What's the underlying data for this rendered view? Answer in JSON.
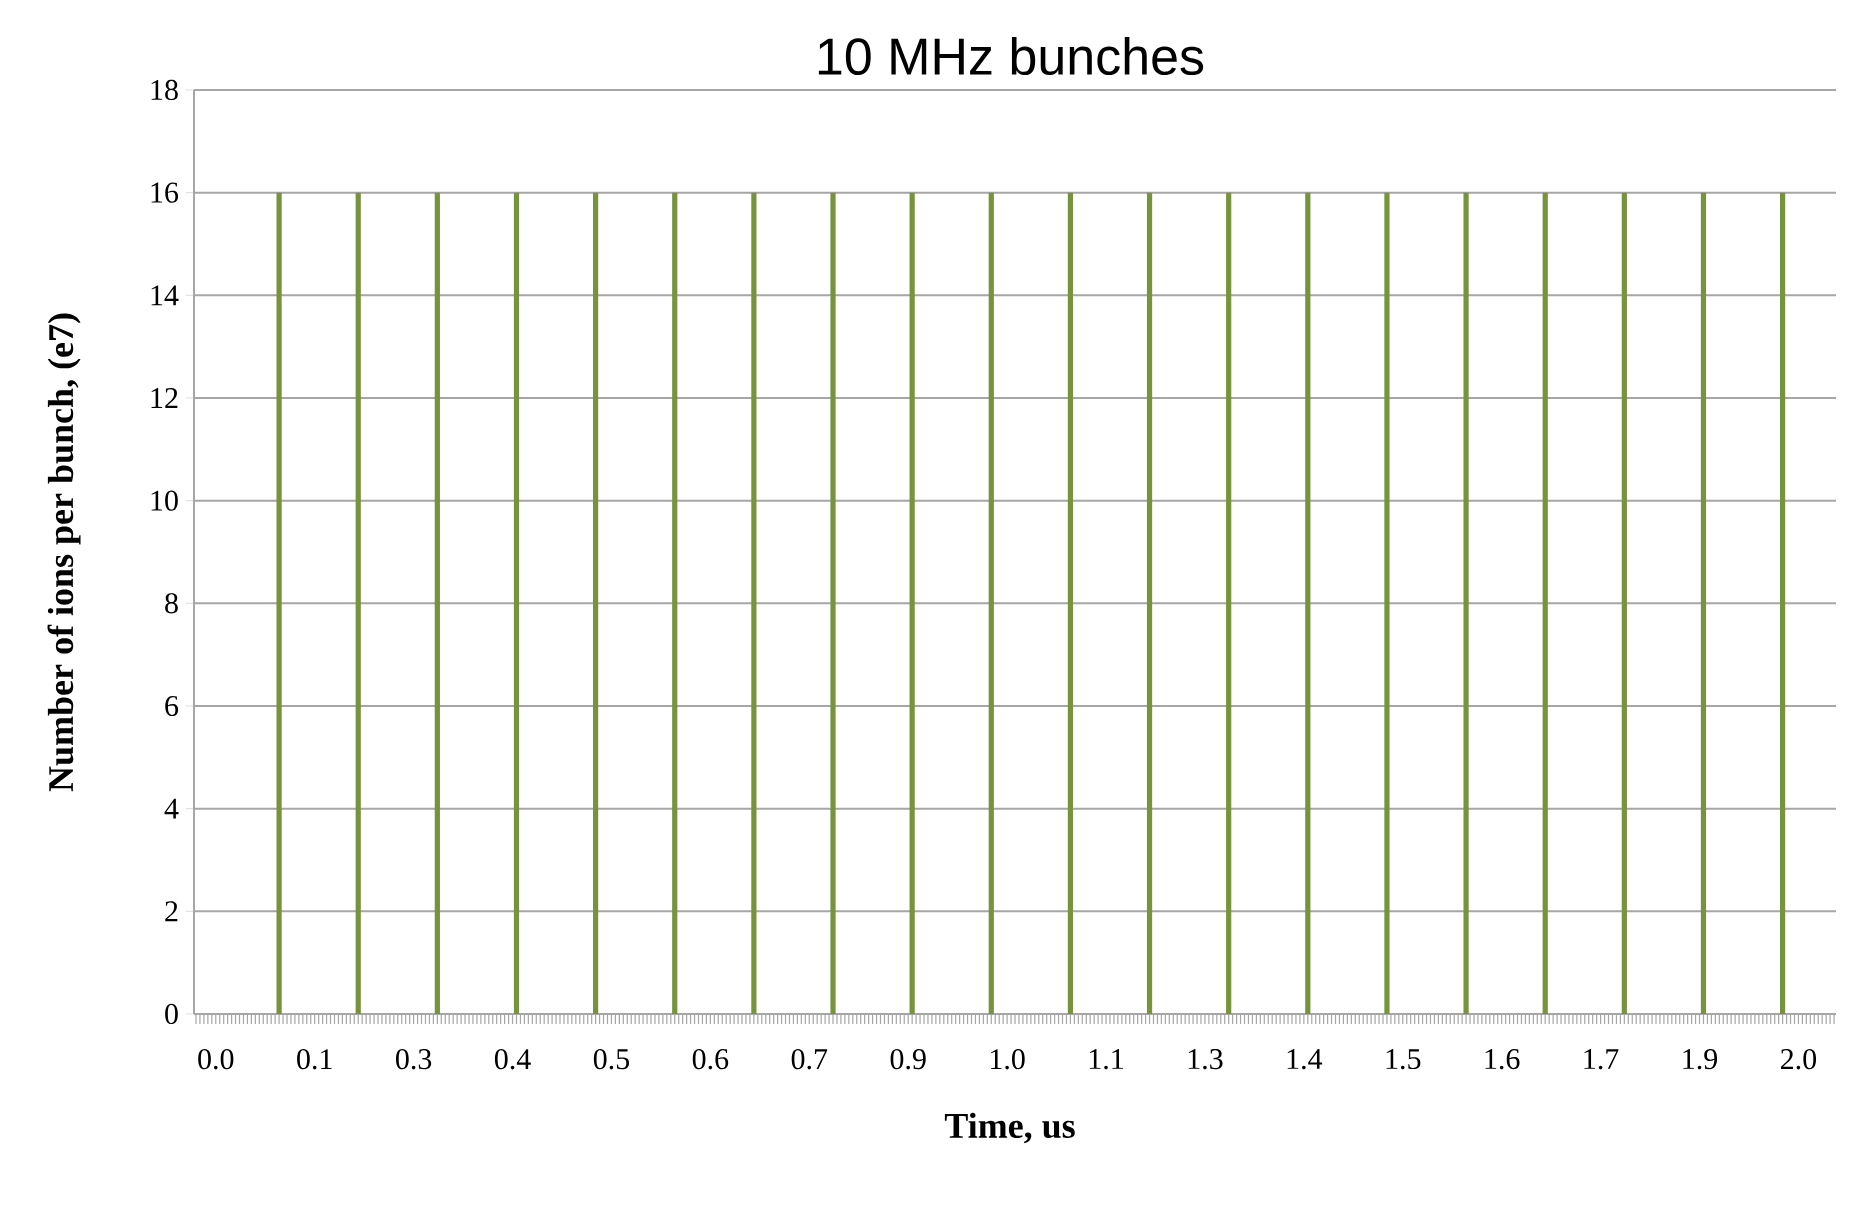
{
  "chart_data": {
    "type": "bar",
    "title": "10 MHz bunches",
    "xlabel": "Time, us",
    "ylabel": "Number of ions per bunch, (e7)",
    "categories": [
      null,
      null,
      null,
      null,
      null,
      "0.0",
      null,
      null,
      null,
      null,
      null,
      null,
      null,
      null,
      null,
      null,
      null,
      null,
      null,
      null,
      null,
      null,
      null,
      null,
      null,
      null,
      null,
      null,
      null,
      null,
      "0.1",
      null,
      null,
      null,
      null,
      null,
      null,
      null,
      null,
      null,
      null,
      null,
      null,
      null,
      null,
      null,
      null,
      null,
      null,
      null,
      null,
      null,
      null,
      null,
      null,
      "0.3",
      null,
      null,
      null,
      null,
      null,
      null,
      null,
      null,
      null,
      null,
      null,
      null,
      null,
      null,
      null,
      null,
      null,
      null,
      null,
      null,
      null,
      null,
      null,
      null,
      "0.4",
      null,
      null,
      null,
      null,
      null,
      null,
      null,
      null,
      null,
      null,
      null,
      null,
      null,
      null,
      null,
      null,
      null,
      null,
      null,
      null,
      null,
      null,
      null,
      null,
      "0.5",
      null,
      null,
      null,
      null,
      null,
      null,
      null,
      null,
      null,
      null,
      null,
      null,
      null,
      null,
      null,
      null,
      null,
      null,
      null,
      null,
      null,
      null,
      null,
      null,
      "0.6",
      null,
      null,
      null,
      null,
      null,
      null,
      null,
      null,
      null,
      null,
      null,
      null,
      null,
      null,
      null,
      null,
      null,
      null,
      null,
      null,
      null,
      null,
      null,
      null,
      "0.7",
      null,
      null,
      null,
      null,
      null,
      null,
      null,
      null,
      null,
      null,
      null,
      null,
      null,
      null,
      null,
      null,
      null,
      null,
      null,
      null,
      null,
      null,
      null,
      null,
      "0.9",
      null,
      null,
      null,
      null,
      null,
      null,
      null,
      null,
      null,
      null,
      null,
      null,
      null,
      null,
      null,
      null,
      null,
      null,
      null,
      null,
      null,
      null,
      null,
      null,
      "1.0",
      null,
      null,
      null,
      null,
      null,
      null,
      null,
      null,
      null,
      null,
      null,
      null,
      null,
      null,
      null,
      null,
      null,
      null,
      null,
      null,
      null,
      null,
      null,
      null,
      "1.1",
      null,
      null,
      null,
      null,
      null,
      null,
      null,
      null,
      null,
      null,
      null,
      null,
      null,
      null,
      null,
      null,
      null,
      null,
      null,
      null,
      null,
      null,
      null,
      null,
      "1.3",
      null,
      null,
      null,
      null,
      null,
      null,
      null,
      null,
      null,
      null,
      null,
      null,
      null,
      null,
      null,
      null,
      null,
      null,
      null,
      null,
      null,
      null,
      null,
      null,
      "1.4",
      null,
      null,
      null,
      null,
      null,
      null,
      null,
      null,
      null,
      null,
      null,
      null,
      null,
      null,
      null,
      null,
      null,
      null,
      null,
      null,
      null,
      null,
      null,
      null,
      "1.5",
      null,
      null,
      null,
      null,
      null,
      null,
      null,
      null,
      null,
      null,
      null,
      null,
      null,
      null,
      null,
      null,
      null,
      null,
      null,
      null,
      null,
      null,
      null,
      null,
      "1.6",
      null,
      null,
      null,
      null,
      null,
      null,
      null,
      null,
      null,
      null,
      null,
      null,
      null,
      null,
      null,
      null,
      null,
      null,
      null,
      null,
      null,
      null,
      null,
      null,
      "1.7",
      null,
      null,
      null,
      null,
      null,
      null,
      null,
      null,
      null,
      null,
      null,
      null,
      null,
      null,
      null,
      null,
      null,
      null,
      null,
      null,
      null,
      null,
      null,
      null,
      "1.9",
      null,
      null,
      null,
      null,
      null,
      null,
      null,
      null,
      null,
      null,
      null,
      null,
      null,
      null,
      null,
      null,
      null,
      null,
      null,
      null,
      null,
      null,
      null,
      null,
      "2.0",
      null,
      null,
      null,
      null,
      null,
      null,
      null,
      null,
      null
    ],
    "values": [
      0,
      0,
      0,
      0,
      0,
      0,
      0,
      0,
      0,
      0,
      0,
      0,
      0,
      0,
      0,
      0,
      0,
      0,
      0,
      0,
      0,
      16,
      0,
      0,
      0,
      0,
      0,
      0,
      0,
      0,
      0,
      0,
      0,
      0,
      0,
      0,
      0,
      0,
      0,
      0,
      0,
      16,
      0,
      0,
      0,
      0,
      0,
      0,
      0,
      0,
      0,
      0,
      0,
      0,
      0,
      0,
      0,
      0,
      0,
      0,
      0,
      16,
      0,
      0,
      0,
      0,
      0,
      0,
      0,
      0,
      0,
      0,
      0,
      0,
      0,
      0,
      0,
      0,
      0,
      0,
      0,
      16,
      0,
      0,
      0,
      0,
      0,
      0,
      0,
      0,
      0,
      0,
      0,
      0,
      0,
      0,
      0,
      0,
      0,
      0,
      0,
      16,
      0,
      0,
      0,
      0,
      0,
      0,
      0,
      0,
      0,
      0,
      0,
      0,
      0,
      0,
      0,
      0,
      0,
      0,
      0,
      16,
      0,
      0,
      0,
      0,
      0,
      0,
      0,
      0,
      0,
      0,
      0,
      0,
      0,
      0,
      0,
      0,
      0,
      0,
      0,
      16,
      0,
      0,
      0,
      0,
      0,
      0,
      0,
      0,
      0,
      0,
      0,
      0,
      0,
      0,
      0,
      0,
      0,
      0,
      0,
      16,
      0,
      0,
      0,
      0,
      0,
      0,
      0,
      0,
      0,
      0,
      0,
      0,
      0,
      0,
      0,
      0,
      0,
      0,
      0,
      16,
      0,
      0,
      0,
      0,
      0,
      0,
      0,
      0,
      0,
      0,
      0,
      0,
      0,
      0,
      0,
      0,
      0,
      0,
      0,
      16,
      0,
      0,
      0,
      0,
      0,
      0,
      0,
      0,
      0,
      0,
      0,
      0,
      0,
      0,
      0,
      0,
      0,
      0,
      0,
      16,
      0,
      0,
      0,
      0,
      0,
      0,
      0,
      0,
      0,
      0,
      0,
      0,
      0,
      0,
      0,
      0,
      0,
      0,
      0,
      16,
      0,
      0,
      0,
      0,
      0,
      0,
      0,
      0,
      0,
      0,
      0,
      0,
      0,
      0,
      0,
      0,
      0,
      0,
      0,
      16,
      0,
      0,
      0,
      0,
      0,
      0,
      0,
      0,
      0,
      0,
      0,
      0,
      0,
      0,
      0,
      0,
      0,
      0,
      0,
      16,
      0,
      0,
      0,
      0,
      0,
      0,
      0,
      0,
      0,
      0,
      0,
      0,
      0,
      0,
      0,
      0,
      0,
      0,
      0,
      16,
      0,
      0,
      0,
      0,
      0,
      0,
      0,
      0,
      0,
      0,
      0,
      0,
      0,
      0,
      0,
      0,
      0,
      0,
      0,
      16,
      0,
      0,
      0,
      0,
      0,
      0,
      0,
      0,
      0,
      0,
      0,
      0,
      0,
      0,
      0,
      0,
      0,
      0,
      0,
      16,
      0,
      0,
      0,
      0,
      0,
      0,
      0,
      0,
      0,
      0,
      0,
      0,
      0,
      0,
      0,
      0,
      0,
      0,
      0,
      16,
      0,
      0,
      0,
      0,
      0,
      0,
      0,
      0,
      0,
      0,
      0,
      0,
      0,
      0,
      0,
      0,
      0,
      0,
      0,
      16,
      0,
      0,
      0,
      0,
      0,
      0,
      0,
      0,
      0,
      0,
      0,
      0,
      0,
      0,
      0,
      0,
      0,
      0,
      0,
      16,
      0,
      0,
      0,
      0,
      0,
      0,
      0,
      0,
      0,
      0,
      0,
      0,
      0
    ],
    "color": "#77933c",
    "ylim": [
      0,
      18
    ],
    "yticks": [
      0,
      2,
      4,
      6,
      8,
      10,
      12,
      14,
      16,
      18
    ],
    "grid": "y"
  }
}
